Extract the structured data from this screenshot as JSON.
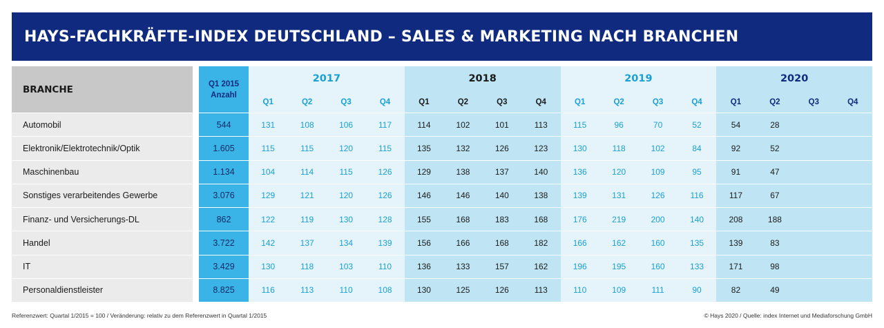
{
  "title": "HAYS-FACHKRÄFTE-INDEX DEUTSCHLAND – SALES & MARKETING NACH BRANCHEN",
  "chart_data": {
    "type": "table",
    "branche_header": "BRANCHE",
    "ref_header": [
      "Q1 2015",
      "Anzahl"
    ],
    "years": [
      "2017",
      "2018",
      "2019",
      "2020"
    ],
    "quarters": [
      "Q1",
      "Q2",
      "Q3",
      "Q4"
    ],
    "rows": [
      {
        "branche": "Automobil",
        "ref": "544",
        "values": [
          "131",
          "108",
          "106",
          "117",
          "114",
          "102",
          "101",
          "113",
          "115",
          "96",
          "70",
          "52",
          "54",
          "28",
          "",
          ""
        ]
      },
      {
        "branche": "Elektronik/Elektrotechnik/Optik",
        "ref": "1.605",
        "values": [
          "115",
          "115",
          "120",
          "115",
          "135",
          "132",
          "126",
          "123",
          "130",
          "118",
          "102",
          "84",
          "92",
          "52",
          "",
          ""
        ]
      },
      {
        "branche": "Maschinenbau",
        "ref": "1.134",
        "values": [
          "104",
          "114",
          "115",
          "126",
          "129",
          "138",
          "137",
          "140",
          "136",
          "120",
          "109",
          "95",
          "91",
          "47",
          "",
          ""
        ]
      },
      {
        "branche": "Sonstiges verarbeitendes Gewerbe",
        "ref": "3.076",
        "values": [
          "129",
          "121",
          "120",
          "126",
          "146",
          "146",
          "140",
          "138",
          "139",
          "131",
          "126",
          "116",
          "117",
          "67",
          "",
          ""
        ]
      },
      {
        "branche": "Finanz- und Versicherungs-DL",
        "ref": "862",
        "values": [
          "122",
          "119",
          "130",
          "128",
          "155",
          "168",
          "183",
          "168",
          "176",
          "219",
          "200",
          "140",
          "208",
          "188",
          "",
          ""
        ]
      },
      {
        "branche": "Handel",
        "ref": "3.722",
        "values": [
          "142",
          "137",
          "134",
          "139",
          "156",
          "166",
          "168",
          "182",
          "166",
          "162",
          "160",
          "135",
          "139",
          "83",
          "",
          ""
        ]
      },
      {
        "branche": "IT",
        "ref": "3.429",
        "values": [
          "130",
          "118",
          "103",
          "110",
          "136",
          "133",
          "157",
          "162",
          "196",
          "195",
          "160",
          "133",
          "171",
          "98",
          "",
          ""
        ]
      },
      {
        "branche": "Personaldienstleister",
        "ref": "8.825",
        "values": [
          "116",
          "113",
          "110",
          "108",
          "130",
          "125",
          "126",
          "113",
          "110",
          "109",
          "111",
          "90",
          "82",
          "49",
          "",
          ""
        ]
      }
    ]
  },
  "footer": {
    "left": "Referenzwert: Quartal 1/2015 = 100 / Veränderung: relativ zu dem Referenzwert in Quartal 1/2015",
    "right": "© Hays 2020 / Quelle: index Internet und Mediaforschung GmbH"
  },
  "colors": {
    "title_bg": "#0f2a7e",
    "ref_column": "#3ab4e6",
    "year_light": "#e5f4fb",
    "year_mid": "#bfe5f5",
    "value_cyan": "#1aa0d2",
    "label_gray": "#ebebeb"
  }
}
